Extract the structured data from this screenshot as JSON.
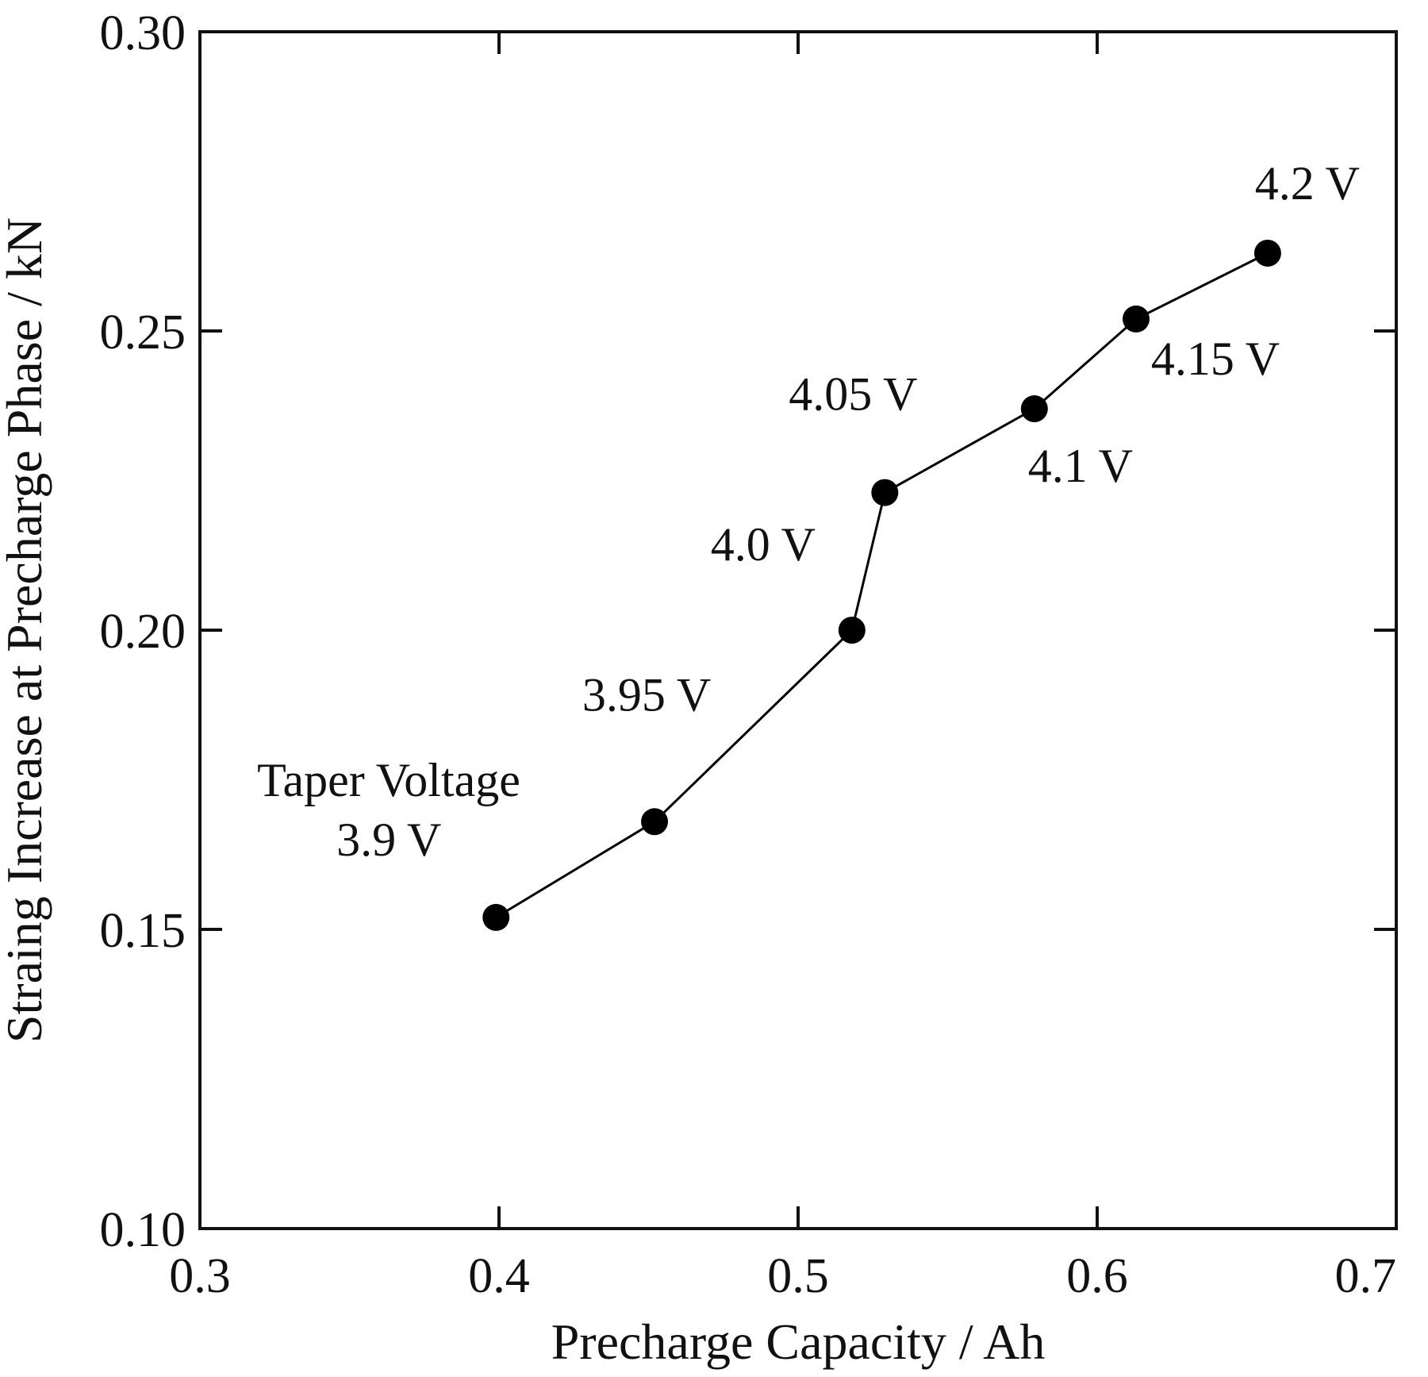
{
  "chart_data": {
    "type": "line",
    "title": "",
    "xlabel": "Precharge Capacity / Ah",
    "ylabel": "Straing Increase at Precharge Phase / kN",
    "xlim": [
      0.3,
      0.7
    ],
    "ylim": [
      0.1,
      0.3
    ],
    "x_ticks": [
      "0.3",
      "0.4",
      "0.5",
      "0.6",
      "0.7"
    ],
    "y_ticks": [
      "0.10",
      "0.15",
      "0.20",
      "0.25",
      "0.30"
    ],
    "grid": false,
    "legend": "none",
    "series": [
      {
        "marker": "filled-circle",
        "color": "#000000",
        "points": [
          {
            "x": 0.399,
            "y": 0.152,
            "label": "3.9 V"
          },
          {
            "x": 0.452,
            "y": 0.168,
            "label": "3.95 V"
          },
          {
            "x": 0.518,
            "y": 0.2,
            "label": "4.0 V"
          },
          {
            "x": 0.529,
            "y": 0.223,
            "label": "4.05 V"
          },
          {
            "x": 0.579,
            "y": 0.237,
            "label": "4.1 V"
          },
          {
            "x": 0.613,
            "y": 0.252,
            "label": "4.15 V"
          },
          {
            "x": 0.657,
            "y": 0.263,
            "label": "4.2 V"
          }
        ]
      }
    ],
    "annotations": [
      {
        "text": "Taper Voltage"
      }
    ]
  }
}
